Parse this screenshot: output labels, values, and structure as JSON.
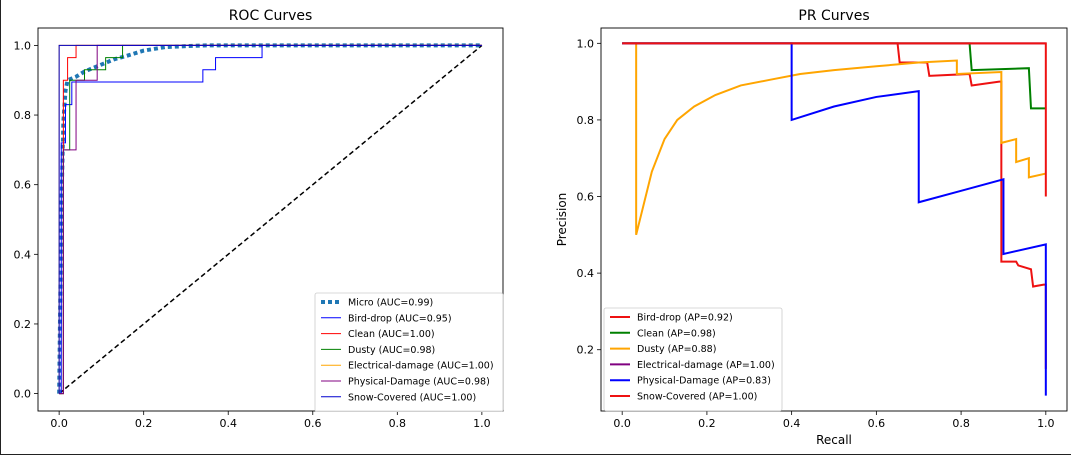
{
  "chart_data": [
    {
      "type": "line",
      "title": "ROC Curves",
      "xlabel": "",
      "ylabel": "",
      "xlim": [
        -0.05,
        1.05
      ],
      "ylim": [
        -0.05,
        1.05
      ],
      "xticks": [
        0.0,
        0.2,
        0.4,
        0.6,
        0.8,
        1.0
      ],
      "yticks": [
        0.0,
        0.2,
        0.4,
        0.6,
        0.8,
        1.0
      ],
      "xtick_labels": [
        "0.0",
        "0.2",
        "0.4",
        "0.6",
        "0.8",
        "1.0"
      ],
      "ytick_labels": [
        "0.0",
        "0.2",
        "0.4",
        "0.6",
        "0.8",
        "1.0"
      ],
      "legend_position": "bottom-right",
      "series": [
        {
          "name": "Micro (AUC=0.99)",
          "color": "#1f77b4",
          "style": "dotted-thick",
          "x": [
            0,
            0.005,
            0.01,
            0.015,
            0.02,
            0.04,
            0.06,
            0.08,
            0.1,
            0.13,
            0.16,
            0.2,
            0.25,
            0.3,
            0.35,
            1.0
          ],
          "y": [
            0,
            0.52,
            0.78,
            0.87,
            0.9,
            0.91,
            0.925,
            0.935,
            0.945,
            0.96,
            0.97,
            0.985,
            0.995,
            0.998,
            1.0,
            1.0
          ]
        },
        {
          "name": "Bird-drop (AUC=0.95)",
          "color": "#0000ff",
          "style": "step",
          "x": [
            0,
            0.005,
            0.005,
            0.015,
            0.015,
            0.03,
            0.03,
            0.34,
            0.34,
            0.37,
            0.37,
            0.48,
            0.48,
            1.0
          ],
          "y": [
            0,
            0,
            0.72,
            0.72,
            0.83,
            0.83,
            0.895,
            0.895,
            0.93,
            0.93,
            0.965,
            0.965,
            1.0,
            1.0
          ]
        },
        {
          "name": "Clean (AUC=1.00)",
          "color": "#ff0000",
          "style": "step",
          "x": [
            0,
            0.01,
            0.01,
            0.02,
            0.02,
            0.04,
            0.04,
            1.0
          ],
          "y": [
            0,
            0,
            0.9,
            0.9,
            0.965,
            0.965,
            1.0,
            1.0
          ]
        },
        {
          "name": "Dusty (AUC=0.98)",
          "color": "#008000",
          "style": "step",
          "x": [
            0,
            0.01,
            0.01,
            0.025,
            0.025,
            0.06,
            0.06,
            0.11,
            0.11,
            0.15,
            0.15,
            1.0
          ],
          "y": [
            0,
            0,
            0.7,
            0.7,
            0.9,
            0.9,
            0.93,
            0.93,
            0.965,
            0.965,
            1.0,
            1.0
          ]
        },
        {
          "name": "Electrical-damage (AUC=1.00)",
          "color": "#ffa500",
          "style": "step",
          "x": [
            0,
            0.0,
            0.01,
            1.0
          ],
          "y": [
            0,
            1.0,
            1.0,
            1.0
          ]
        },
        {
          "name": "Physical-Damage (AUC=0.98)",
          "color": "#800080",
          "style": "step",
          "x": [
            0,
            0.01,
            0.01,
            0.04,
            0.04,
            0.09,
            0.09,
            1.0
          ],
          "y": [
            0,
            0,
            0.7,
            0.7,
            0.9,
            0.9,
            1.0,
            1.0
          ]
        },
        {
          "name": "Snow-Covered (AUC=1.00)",
          "color": "#0000cd",
          "style": "step",
          "x": [
            0,
            0.0,
            0.0,
            1.0
          ],
          "y": [
            0,
            0.0,
            1.0,
            1.0
          ]
        }
      ],
      "reference_line": {
        "x": [
          0,
          1
        ],
        "y": [
          0,
          1
        ],
        "color": "#000000",
        "style": "dashed"
      }
    },
    {
      "type": "line",
      "title": "PR Curves",
      "xlabel": "Recall",
      "ylabel": "Precision",
      "xlim": [
        -0.05,
        1.05
      ],
      "ylim": [
        0.04,
        1.04
      ],
      "xticks": [
        0.0,
        0.2,
        0.4,
        0.6,
        0.8,
        1.0
      ],
      "yticks": [
        0.2,
        0.4,
        0.6,
        0.8,
        1.0
      ],
      "xtick_labels": [
        "0.0",
        "0.2",
        "0.4",
        "0.6",
        "0.8",
        "1.0"
      ],
      "ytick_labels": [
        "0.2",
        "0.4",
        "0.6",
        "0.8",
        "1.0"
      ],
      "legend_position": "bottom-left",
      "series": [
        {
          "name": "Bird-drop (AP=0.92)",
          "color": "#ee1111",
          "style": "line",
          "x": [
            0,
            0.65,
            0.655,
            0.72,
            0.725,
            0.82,
            0.825,
            0.89,
            0.895,
            0.895,
            0.93,
            0.935,
            0.965,
            0.97,
            0.995,
            1.0,
            1.0
          ],
          "y": [
            1.0,
            1.0,
            0.95,
            0.95,
            0.915,
            0.92,
            0.89,
            0.9,
            0.9,
            0.43,
            0.43,
            0.42,
            0.41,
            0.365,
            0.37,
            0.37,
            0.15
          ]
        },
        {
          "name": "Clean (AP=0.98)",
          "color": "#008000",
          "style": "line",
          "x": [
            0,
            0.82,
            0.825,
            0.96,
            0.965,
            1.0
          ],
          "y": [
            1.0,
            1.0,
            0.93,
            0.935,
            0.83,
            0.83
          ]
        },
        {
          "name": "Dusty (AP=0.88)",
          "color": "#ffa500",
          "style": "line",
          "x": [
            0.0,
            0.033,
            0.033,
            0.07,
            0.1,
            0.13,
            0.17,
            0.22,
            0.28,
            0.35,
            0.42,
            0.5,
            0.6,
            0.7,
            0.79,
            0.79,
            0.895,
            0.895,
            0.93,
            0.93,
            0.96,
            0.96,
            1.0
          ],
          "y": [
            1.0,
            1.0,
            0.5,
            0.665,
            0.75,
            0.8,
            0.835,
            0.865,
            0.89,
            0.905,
            0.92,
            0.93,
            0.94,
            0.95,
            0.955,
            0.92,
            0.925,
            0.74,
            0.75,
            0.69,
            0.7,
            0.65,
            0.66
          ]
        },
        {
          "name": "Electrical-damage (AP=1.00)",
          "color": "#800080",
          "style": "line",
          "x": [
            0,
            1.0
          ],
          "y": [
            1.0,
            1.0
          ]
        },
        {
          "name": "Physical-Damage (AP=0.83)",
          "color": "#0000ff",
          "style": "line",
          "x": [
            0,
            0.4,
            0.4,
            0.5,
            0.6,
            0.7,
            0.7,
            0.8,
            0.9,
            0.9,
            1.0,
            1.0
          ],
          "y": [
            1.0,
            1.0,
            0.8,
            0.835,
            0.86,
            0.875,
            0.585,
            0.615,
            0.645,
            0.45,
            0.475,
            0.08
          ]
        },
        {
          "name": "Snow-Covered (AP=1.00)",
          "color": "#ee1111",
          "style": "line",
          "x": [
            0,
            1.0,
            1.0
          ],
          "y": [
            1.0,
            1.0,
            0.6
          ]
        }
      ]
    }
  ]
}
